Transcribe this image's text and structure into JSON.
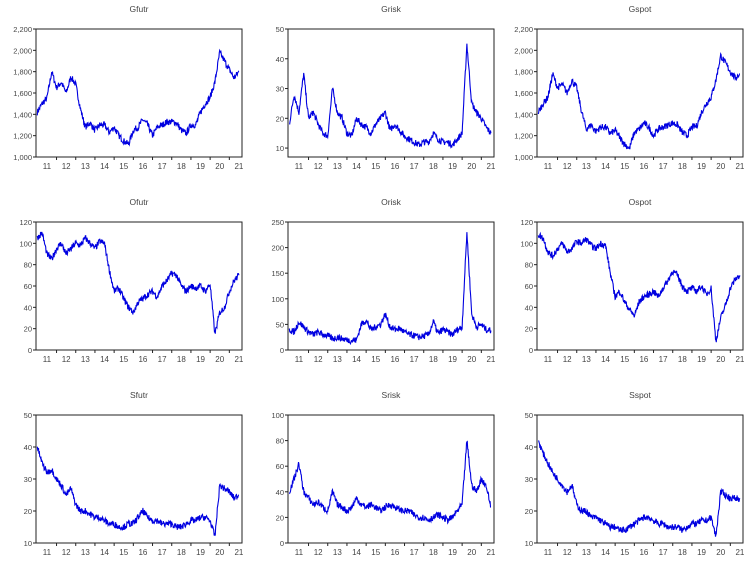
{
  "chart_data": [
    {
      "type": "line",
      "title": "Gfutr",
      "ylim": [
        1000,
        2200
      ],
      "yticks": [
        1000,
        1200,
        1400,
        1600,
        1800,
        2000,
        2200
      ],
      "values": [
        1420,
        1500,
        1550,
        1800,
        1650,
        1700,
        1600,
        1750,
        1680,
        1450,
        1280,
        1320,
        1250,
        1300,
        1300,
        1230,
        1280,
        1200,
        1150,
        1120,
        1250,
        1280,
        1350,
        1300,
        1200,
        1280,
        1300,
        1330,
        1330,
        1320,
        1250,
        1220,
        1300,
        1300,
        1420,
        1500,
        1560,
        1700,
        1980,
        1900,
        1820,
        1740,
        1800
      ]
    },
    {
      "type": "line",
      "title": "Grisk",
      "ylim": [
        7,
        50
      ],
      "yticks": [
        10,
        20,
        30,
        40,
        50
      ],
      "values": [
        18,
        28,
        22,
        35,
        20,
        22,
        18,
        15,
        14,
        30,
        22,
        20,
        15,
        14,
        20,
        18,
        17,
        15,
        18,
        20,
        22,
        16,
        18,
        16,
        14,
        13,
        12,
        11,
        12,
        12,
        15,
        13,
        12,
        12,
        11,
        13,
        15,
        45,
        25,
        22,
        20,
        17,
        15
      ]
    },
    {
      "type": "line",
      "title": "Gspot",
      "ylim": [
        1000,
        2200
      ],
      "yticks": [
        1000,
        1200,
        1400,
        1600,
        1800,
        2000,
        2200
      ],
      "values": [
        1420,
        1500,
        1560,
        1780,
        1650,
        1680,
        1600,
        1720,
        1650,
        1430,
        1260,
        1300,
        1240,
        1280,
        1280,
        1220,
        1250,
        1180,
        1120,
        1080,
        1230,
        1260,
        1320,
        1280,
        1200,
        1260,
        1280,
        1300,
        1320,
        1300,
        1230,
        1200,
        1280,
        1290,
        1420,
        1500,
        1560,
        1720,
        1950,
        1880,
        1800,
        1740,
        1780
      ]
    },
    {
      "type": "line",
      "title": "Ofutr",
      "ylim": [
        0,
        120
      ],
      "yticks": [
        0,
        20,
        40,
        60,
        80,
        100,
        120
      ],
      "values": [
        105,
        110,
        90,
        85,
        95,
        100,
        90,
        95,
        100,
        98,
        105,
        100,
        95,
        102,
        100,
        75,
        55,
        58,
        48,
        40,
        35,
        45,
        48,
        52,
        55,
        50,
        60,
        65,
        72,
        70,
        60,
        55,
        60,
        58,
        60,
        55,
        62,
        15,
        35,
        40,
        55,
        65,
        70
      ]
    },
    {
      "type": "line",
      "title": "Orisk",
      "ylim": [
        0,
        250
      ],
      "yticks": [
        0,
        50,
        100,
        150,
        200,
        250
      ],
      "values": [
        40,
        35,
        55,
        45,
        35,
        30,
        35,
        30,
        28,
        22,
        25,
        22,
        20,
        18,
        20,
        50,
        58,
        40,
        45,
        50,
        70,
        45,
        40,
        42,
        35,
        30,
        28,
        25,
        27,
        30,
        55,
        32,
        40,
        35,
        30,
        40,
        45,
        230,
        70,
        45,
        50,
        40,
        38
      ]
    },
    {
      "type": "line",
      "title": "Ospot",
      "ylim": [
        0,
        120
      ],
      "yticks": [
        0,
        20,
        40,
        60,
        80,
        100,
        120
      ],
      "values": [
        108,
        105,
        92,
        88,
        95,
        100,
        92,
        95,
        102,
        100,
        104,
        98,
        95,
        100,
        98,
        72,
        50,
        55,
        45,
        38,
        32,
        45,
        50,
        52,
        55,
        50,
        58,
        65,
        74,
        70,
        60,
        55,
        58,
        55,
        60,
        52,
        58,
        8,
        30,
        42,
        58,
        66,
        70
      ]
    },
    {
      "type": "line",
      "title": "Sfutr",
      "ylim": [
        10,
        50
      ],
      "yticks": [
        10,
        20,
        30,
        40,
        50
      ],
      "values": [
        40,
        35,
        32,
        33,
        30,
        28,
        25,
        27,
        22,
        20,
        20,
        19,
        18,
        18,
        17,
        16,
        16,
        15,
        15,
        16,
        16,
        18,
        20,
        18,
        17,
        17,
        16,
        16,
        16,
        15,
        15,
        16,
        17,
        17,
        18,
        18,
        17,
        12,
        28,
        27,
        26,
        24,
        25
      ]
    },
    {
      "type": "line",
      "title": "Srisk",
      "ylim": [
        0,
        100
      ],
      "yticks": [
        0,
        20,
        40,
        60,
        80,
        100
      ],
      "values": [
        40,
        50,
        62,
        40,
        35,
        30,
        32,
        28,
        25,
        40,
        30,
        28,
        25,
        28,
        35,
        30,
        28,
        30,
        28,
        25,
        28,
        30,
        28,
        26,
        25,
        25,
        22,
        20,
        20,
        18,
        20,
        22,
        20,
        18,
        20,
        25,
        30,
        80,
        45,
        40,
        50,
        45,
        28
      ]
    },
    {
      "type": "line",
      "title": "Sspot",
      "ylim": [
        10,
        50
      ],
      "yticks": [
        10,
        20,
        30,
        40,
        50
      ],
      "values": [
        42,
        38,
        35,
        32,
        30,
        28,
        26,
        28,
        22,
        20,
        20,
        18,
        18,
        17,
        16,
        15,
        15,
        14,
        14,
        15,
        16,
        17,
        18,
        18,
        17,
        16,
        16,
        15,
        15,
        15,
        14,
        15,
        16,
        16,
        17,
        17,
        18,
        12,
        26,
        25,
        24,
        24,
        24
      ]
    }
  ],
  "x_start_year": 2011.0,
  "x_step_years": 0.25,
  "xlim": [
    2010.93,
    2021.66
  ],
  "xtick_labels": [
    "11",
    "12",
    "13",
    "14",
    "15",
    "16",
    "17",
    "18",
    "19",
    "20",
    "21"
  ],
  "line_color": "#0000e0"
}
